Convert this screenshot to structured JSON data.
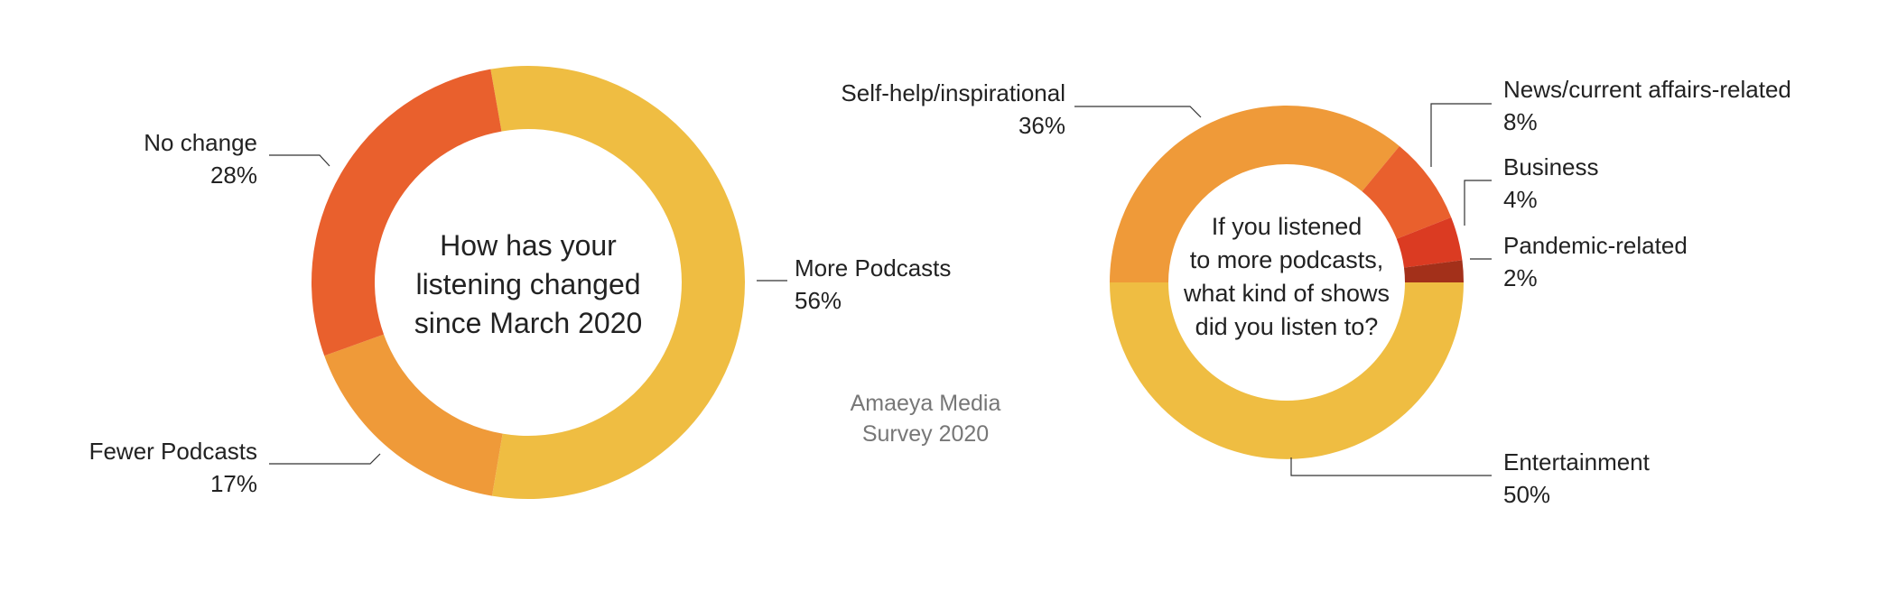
{
  "source": [
    "Amaeya Media",
    "Survey 2020"
  ],
  "chart_data": [
    {
      "type": "pie",
      "donut": true,
      "center_title": [
        "How has your",
        "listening changed",
        "since March 2020"
      ],
      "categories": [
        "More Podcasts",
        "Fewer Podcasts",
        "No change"
      ],
      "values": [
        56,
        17,
        28
      ],
      "value_labels": [
        "56%",
        "17%",
        "28%"
      ],
      "colors": [
        "#efbd42",
        "#ef9a39",
        "#e9602d"
      ]
    },
    {
      "type": "pie",
      "donut": true,
      "center_title": [
        "If you listened",
        "to more podcasts,",
        "what kind of shows",
        "did you listen to?"
      ],
      "categories": [
        "Entertainment",
        "Self-help/inspirational",
        "News/current affairs-related",
        "Business",
        "Pandemic-related"
      ],
      "values": [
        50,
        36,
        8,
        4,
        2
      ],
      "value_labels": [
        "50%",
        "36%",
        "8%",
        "4%",
        "2%"
      ],
      "colors": [
        "#efbd42",
        "#ef9a39",
        "#e9602d",
        "#db3b22",
        "#a3301a"
      ]
    }
  ]
}
